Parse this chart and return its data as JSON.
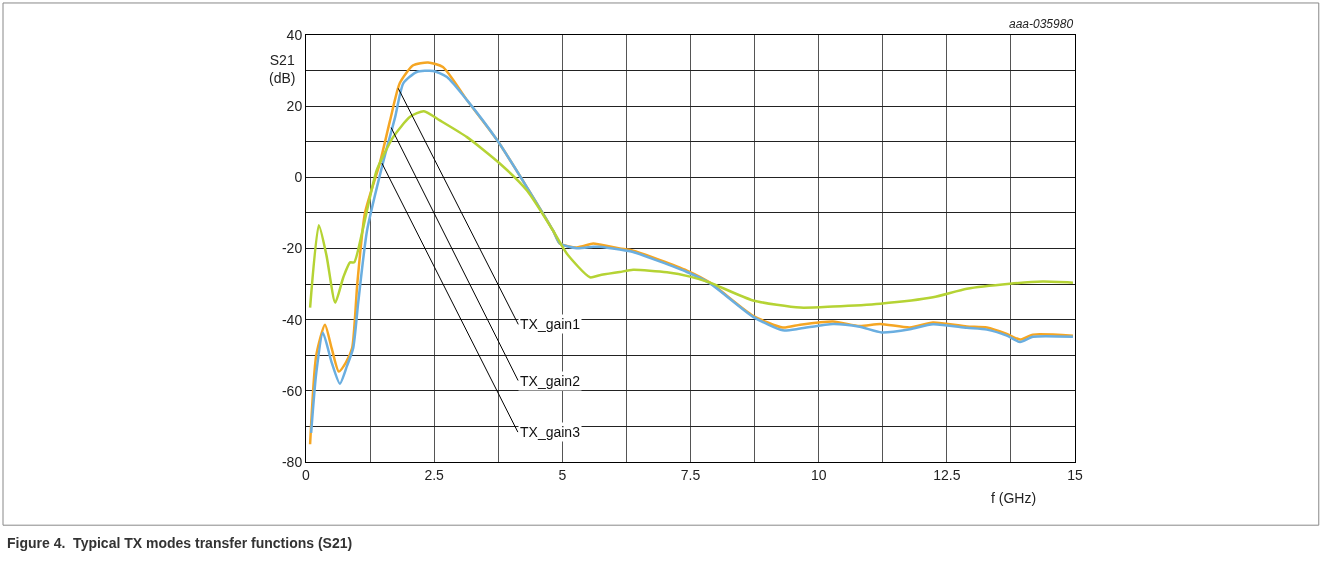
{
  "chart_data": {
    "type": "line",
    "title": "Figure 4.  Typical TX modes transfer functions (S21)",
    "xlabel": "f (GHz)",
    "ylabel": "S21\n(dB)",
    "xlim": [
      0,
      15
    ],
    "ylim": [
      -80,
      40
    ],
    "xticks": [
      0,
      {
        "value": 1.25,
        "label": null
      },
      2.5,
      {
        "value": 3.75,
        "label": null
      },
      5,
      {
        "value": 6.25,
        "label": null
      },
      7.5,
      {
        "value": 8.75,
        "label": null
      },
      10,
      {
        "value": 11.25,
        "label": null
      },
      12.5,
      {
        "value": 13.75,
        "label": null
      },
      15
    ],
    "yticks": [
      -80,
      {
        "value": -70,
        "label": null
      },
      -60,
      {
        "value": -50,
        "label": null
      },
      -40,
      {
        "value": -30,
        "label": null
      },
      -20,
      {
        "value": -10,
        "label": null
      },
      0,
      {
        "value": 10,
        "label": null
      },
      20,
      {
        "value": 30,
        "label": null
      },
      40
    ],
    "grid": true,
    "marker": "none",
    "line_style": "solid",
    "series": [
      {
        "color": "#f5a623",
        "x": [
          0.08,
          0.2,
          0.37,
          0.5,
          0.64,
          0.78,
          0.9,
          1.0,
          1.15,
          1.44,
          1.64,
          1.83,
          2.09,
          2.38,
          2.67,
          3.14,
          3.73,
          4.31,
          4.82,
          4.95,
          5.28,
          5.6,
          5.73,
          6.12,
          6.38,
          7.43,
          7.88,
          8.72,
          9.3,
          9.64,
          10.28,
          10.8,
          11.2,
          11.78,
          12.23,
          12.89,
          13.28,
          13.67,
          13.93,
          14.18,
          14.96
        ],
        "values": [
          -75,
          -50,
          -41.4,
          -48,
          -54.6,
          -52,
          -48,
          -30,
          -10,
          4,
          16,
          26.5,
          31.5,
          32.3,
          31,
          21.7,
          10.4,
          -2.8,
          -15,
          -18.6,
          -19.7,
          -18.6,
          -18.9,
          -20,
          -20.6,
          -26.2,
          -29.6,
          -38.9,
          -42.2,
          -41.4,
          -40.5,
          -41.8,
          -41.2,
          -42.2,
          -40.8,
          -41.9,
          -42.2,
          -44,
          -45.6,
          -44.2,
          -44.5
        ]
      },
      {
        "color": "#6aaee0",
        "x": [
          0.1,
          0.2,
          0.33,
          0.5,
          0.66,
          0.8,
          0.92,
          1.02,
          1.19,
          1.5,
          1.74,
          1.9,
          2.16,
          2.48,
          2.75,
          3.14,
          3.73,
          4.31,
          4.82,
          4.95,
          5.28,
          5.6,
          5.73,
          6.12,
          6.38,
          7.43,
          7.88,
          8.72,
          9.3,
          9.64,
          10.28,
          10.8,
          11.23,
          11.78,
          12.23,
          12.89,
          13.28,
          13.67,
          13.93,
          14.18,
          14.96
        ],
        "values": [
          -71.8,
          -55,
          -43.7,
          -52,
          -58,
          -53,
          -48,
          -35,
          -15,
          4,
          17,
          26.5,
          29.6,
          29.9,
          28.2,
          21.7,
          10.4,
          -2.8,
          -15,
          -18.6,
          -19.9,
          -19.5,
          -19.5,
          -20.3,
          -21,
          -26.6,
          -29.8,
          -39.2,
          -43,
          -42.5,
          -41.2,
          -42,
          -43.6,
          -42.7,
          -41.3,
          -42.3,
          -42.8,
          -44.5,
          -46.3,
          -44.8,
          -44.8
        ]
      },
      {
        "color": "#b5d334",
        "x": [
          0.08,
          0.25,
          0.4,
          0.57,
          0.73,
          0.86,
          0.94,
          1.09,
          1.19,
          1.38,
          1.7,
          2.03,
          2.3,
          2.61,
          3.14,
          3.78,
          4.31,
          4.82,
          5.09,
          5.54,
          5.73,
          6.12,
          6.38,
          7.04,
          7.49,
          7.88,
          8.72,
          9.64,
          10.28,
          11.2,
          12.23,
          12.89,
          13.73,
          14.37,
          14.96
        ],
        "values": [
          -36.6,
          -13.5,
          -22,
          -35.2,
          -28,
          -23.9,
          -23.9,
          -15.8,
          -9.3,
          2,
          11.3,
          17,
          18.6,
          16,
          11.3,
          3.9,
          -3.7,
          -15,
          -21.5,
          -28.1,
          -27.5,
          -26.6,
          -26,
          -26.7,
          -27.9,
          -29.6,
          -34.6,
          -36.6,
          -36.3,
          -35.5,
          -33.7,
          -31.3,
          -29.9,
          -29.3,
          -29.6
        ]
      }
    ],
    "annotations": [
      {
        "text": "TX_gain1",
        "x": 1.8,
        "y": 25
      },
      {
        "text": "TX_gain2",
        "x": 1.66,
        "y": 14
      },
      {
        "text": "TX_gain3",
        "x": 1.48,
        "y": 4
      },
      "aaa-035980"
    ]
  }
}
